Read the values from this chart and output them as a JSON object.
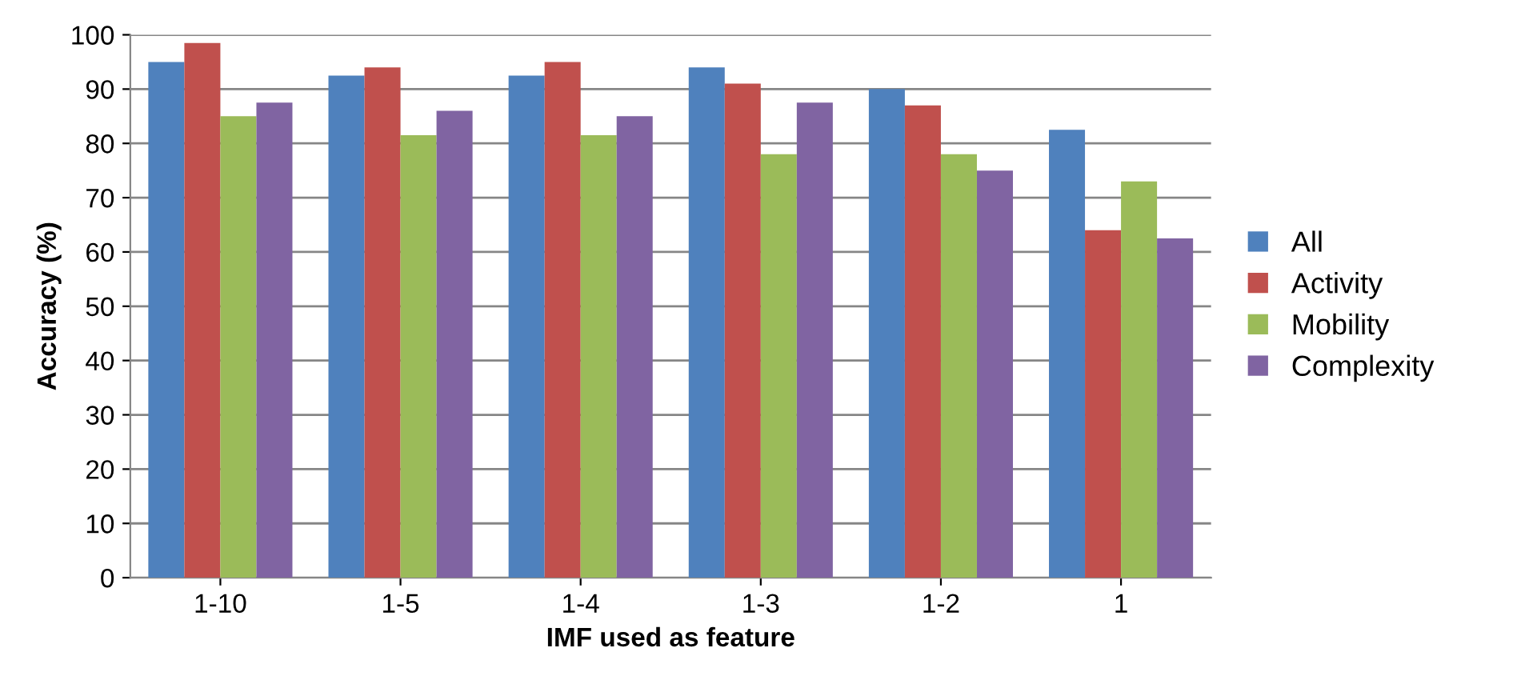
{
  "chart_data": {
    "type": "bar",
    "xlabel": "IMF used as feature",
    "ylabel": "Accuracy (%)",
    "categories": [
      "1-10",
      "1-5",
      "1-4",
      "1-3",
      "1-2",
      "1"
    ],
    "series": [
      {
        "name": "All",
        "color": "#4f81bd",
        "values": [
          95,
          92.5,
          92.5,
          94,
          90,
          82.5
        ]
      },
      {
        "name": "Activity",
        "color": "#c0504d",
        "values": [
          98.5,
          94,
          95,
          91,
          87,
          64
        ]
      },
      {
        "name": "Mobility",
        "color": "#9bbb59",
        "values": [
          85,
          81.5,
          81.5,
          78,
          78,
          73
        ]
      },
      {
        "name": "Complexity",
        "color": "#8064a2",
        "values": [
          87.5,
          86,
          85,
          87.5,
          75,
          62.5
        ]
      }
    ],
    "ylim": [
      0,
      100
    ],
    "yticks": [
      0,
      10,
      20,
      30,
      40,
      50,
      60,
      70,
      80,
      90,
      100
    ],
    "grid": "y",
    "legend": "right"
  }
}
